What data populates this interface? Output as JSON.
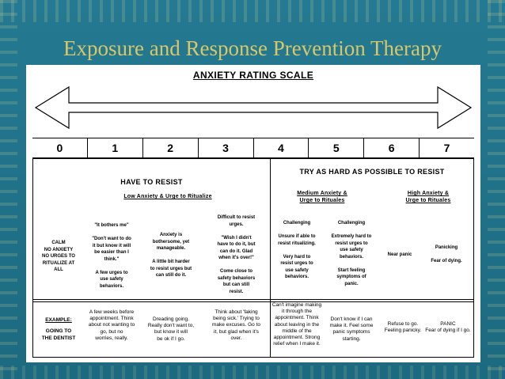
{
  "slide_title": "Exposure and Response Prevention Therapy",
  "scale_title": "ANXIETY RATING SCALE",
  "scale_numbers": [
    "0",
    "1",
    "2",
    "3",
    "4",
    "5",
    "6",
    "7"
  ],
  "group_headers": {
    "left": "HAVE TO RESIST",
    "right": "TRY AS HARD AS POSSIBLE TO RESIST"
  },
  "sub_headers": {
    "low": "Low Anxiety & Urge to Ritualize",
    "medium": "Medium Anxiety &\nUrge to Rituales",
    "high": "High Anxiety &\nUrge to Rituales"
  },
  "levels": [
    "CALM\nNO ANXIETY\nNO URGES TO\nRITUALIZE AT\nALL",
    "\"It bothers me\"\n\n\"Don't want to do\nit but know it will\nbe easier than I\nthink.\"\n\nA few urges to\nuse safety\nbehaviors.",
    "Anxiety is\nbothersome, yet\nmanageable.\n\nA little bit harder\nto resist urges but\ncan still do it.",
    "Difficult to resist\nurges.\n\n\"Wish I didn't\nhave to do it, but\ncan do it.  Glad\nwhen it's over!\"\n\nCome close to\nsafety behaviors\nbut can still\nresist.",
    "Challenging\n\nUnsure if able to\nresist ritualizing.\n\nVery hard to\nresist urges to\nuse safety\nbehaviors.",
    "Challenging\n\nExtremely hard to\nresist urges to\nuse safety\nbehaviors.\n\nStart feeling\nsymptoms of\npanic.",
    "Near panic",
    "Panicking\n\nFear of dying."
  ],
  "example": {
    "label": "EXAMPLE:",
    "subject": "GOING TO\nTHE DENTIST",
    "items": [
      "A few weeks before\nappointment.  Think\nabout not wanting to\ngo, but no\nworries, really.",
      "Dreading going.\nReally don't want to,\nbut know it will\nbe ok if I go.",
      "Think about 'faking\nbeing sick.'  Trying to\nmake excuses.  Go to\nit, but glad when it's\nover.",
      "Can't imagine making\nit through the\nappointment.  Think\nabout leaving in the\nmiddle of the\nappointment.  Strong\nrelief when I make it.",
      "Don't know if I can\nmake it.  Feel some\npanic symptoms\nstarting.",
      "Refuse to go.\nFeeling panicky.",
      "PANIC\nFear of dying if I go."
    ]
  }
}
